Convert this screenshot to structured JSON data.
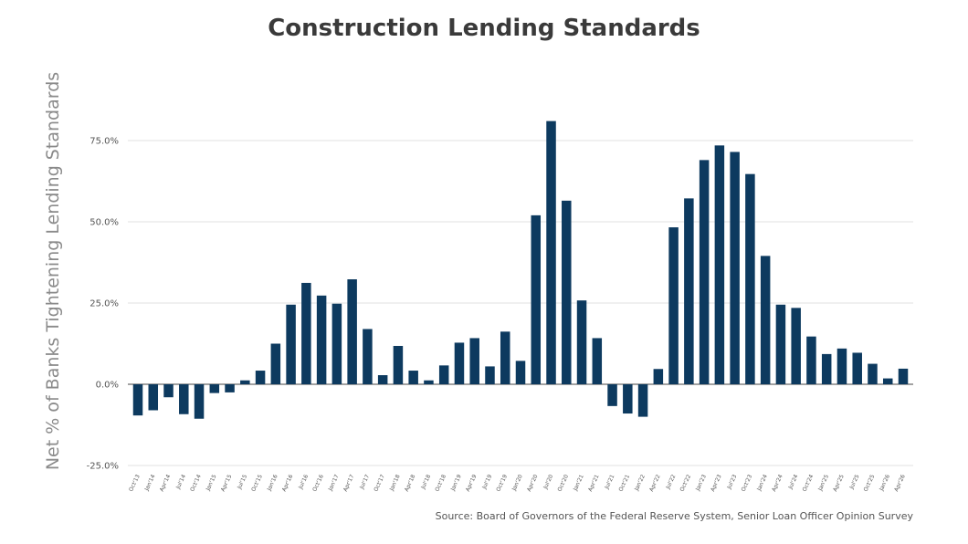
{
  "chart_data": {
    "type": "bar",
    "title": "Construction Lending Standards",
    "ylabel": "Net % of Banks Tightening Lending Standards",
    "xlabel": "",
    "ylim": [
      -25,
      100
    ],
    "yticks": [
      -25,
      0,
      25,
      50,
      75
    ],
    "ytick_labels": [
      "-25.0%",
      "0.0%",
      "25.0%",
      "50.0%",
      "75.0%"
    ],
    "grid": true,
    "bar_color": "#0d3a5f",
    "categories": [
      "Oct'13",
      "Jan'14",
      "Apr'14",
      "Jul'14",
      "Oct'14",
      "Jan'15",
      "Apr'15",
      "Jul'15",
      "Oct'15",
      "Jan'16",
      "Apr'16",
      "Jul'16",
      "Oct'16",
      "Jan'17",
      "Apr'17",
      "Jul'17",
      "Oct'17",
      "Jan'18",
      "Apr'18",
      "Jul'18",
      "Oct'18",
      "Jan'19",
      "Apr'19",
      "Jul'19",
      "Oct'19",
      "Jan'20",
      "Apr'20",
      "Jul'20",
      "Oct'20",
      "Jan'21",
      "Apr'21",
      "Jul'21",
      "Oct'21",
      "Jan'22",
      "Apr'22",
      "Jul'22",
      "Oct'22",
      "Jan'23",
      "Apr'23",
      "Jul'23",
      "Oct'23",
      "Jan'24",
      "Apr'24",
      "Jul'24",
      "Oct'24",
      "Jan'25",
      "Apr'25",
      "Jul'25",
      "Oct'25",
      "Jan'26",
      "Apr'26"
    ],
    "values": [
      -9.6,
      -8.0,
      -4.0,
      -9.2,
      -10.6,
      -2.7,
      -2.5,
      1.2,
      4.2,
      12.5,
      24.5,
      31.2,
      27.3,
      24.8,
      32.3,
      17.0,
      2.8,
      11.8,
      4.2,
      1.2,
      5.8,
      12.8,
      14.2,
      5.5,
      16.2,
      7.2,
      52.0,
      81.0,
      56.5,
      25.8,
      14.2,
      -6.7,
      -9.0,
      -10.0,
      4.7,
      48.3,
      57.2,
      69.0,
      73.5,
      71.5,
      64.7,
      39.5,
      24.5,
      23.5,
      14.7,
      9.3,
      11.0,
      9.7,
      6.3,
      1.8,
      4.8
    ]
  },
  "source_note": "Source: Board of Governors of the Federal Reserve System, Senior Loan Officer Opinion Survey"
}
